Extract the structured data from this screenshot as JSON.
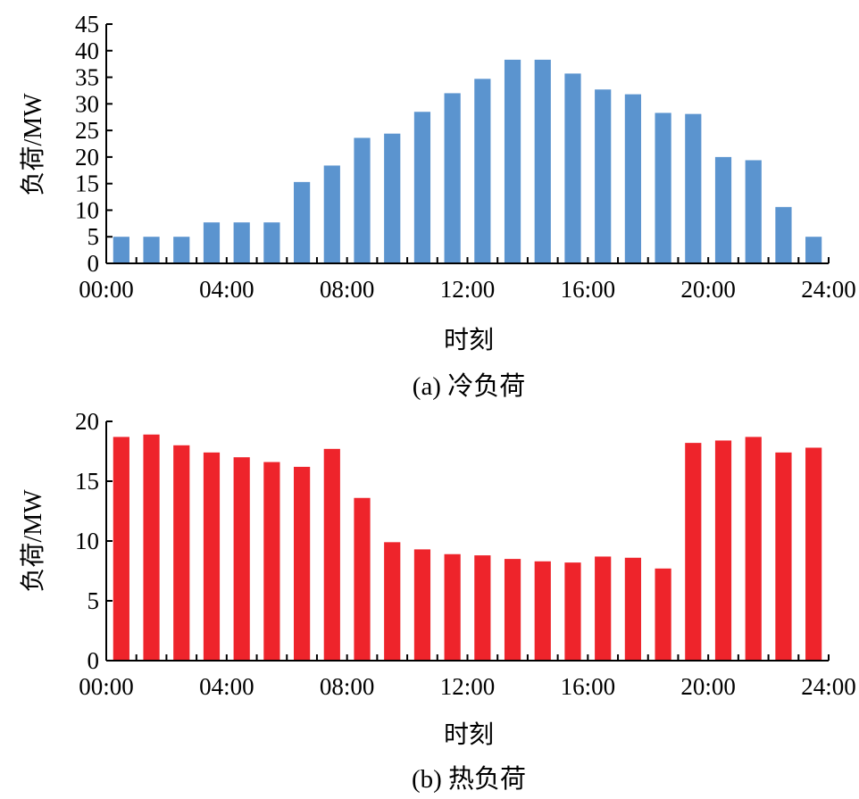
{
  "chart_data": [
    {
      "type": "bar",
      "caption": "(a) 冷负荷",
      "xlabel": "时刻",
      "ylabel": "负荷/MW",
      "ylim": [
        0,
        45
      ],
      "yticks": [
        0,
        5,
        10,
        15,
        20,
        25,
        30,
        35,
        40,
        45
      ],
      "xlim": [
        0,
        24
      ],
      "xtick_labels": [
        "00:00",
        "04:00",
        "08:00",
        "12:00",
        "16:00",
        "20:00",
        "24:00"
      ],
      "x": [
        0,
        1,
        2,
        3,
        4,
        5,
        6,
        7,
        8,
        9,
        10,
        11,
        12,
        13,
        14,
        15,
        16,
        17,
        18,
        19,
        20,
        21,
        22,
        23
      ],
      "values": [
        5,
        5,
        5,
        7.7,
        7.7,
        7.7,
        15.3,
        18.4,
        23.6,
        24.4,
        28.5,
        32,
        34.7,
        38.3,
        38.3,
        35.7,
        32.7,
        31.8,
        28.3,
        28.1,
        20,
        19.4,
        10.6,
        5
      ],
      "color": "#5b94cf",
      "grid": false
    },
    {
      "type": "bar",
      "caption": "(b) 热负荷",
      "xlabel": "时刻",
      "ylabel": "负荷/MW",
      "ylim": [
        0,
        20
      ],
      "yticks": [
        0,
        5,
        10,
        15,
        20
      ],
      "xlim": [
        0,
        24
      ],
      "xtick_labels": [
        "00:00",
        "04:00",
        "08:00",
        "12:00",
        "16:00",
        "20:00",
        "24:00"
      ],
      "x": [
        0,
        1,
        2,
        3,
        4,
        5,
        6,
        7,
        8,
        9,
        10,
        11,
        12,
        13,
        14,
        15,
        16,
        17,
        18,
        19,
        20,
        21,
        22,
        23
      ],
      "values": [
        18.7,
        18.9,
        18,
        17.4,
        17,
        16.6,
        16.2,
        17.7,
        13.6,
        9.9,
        9.3,
        8.9,
        8.8,
        8.5,
        8.3,
        8.2,
        8.7,
        8.6,
        7.7,
        18.2,
        18.4,
        18.7,
        17.4,
        17.8
      ],
      "color": "#ee242b",
      "grid": false
    }
  ]
}
